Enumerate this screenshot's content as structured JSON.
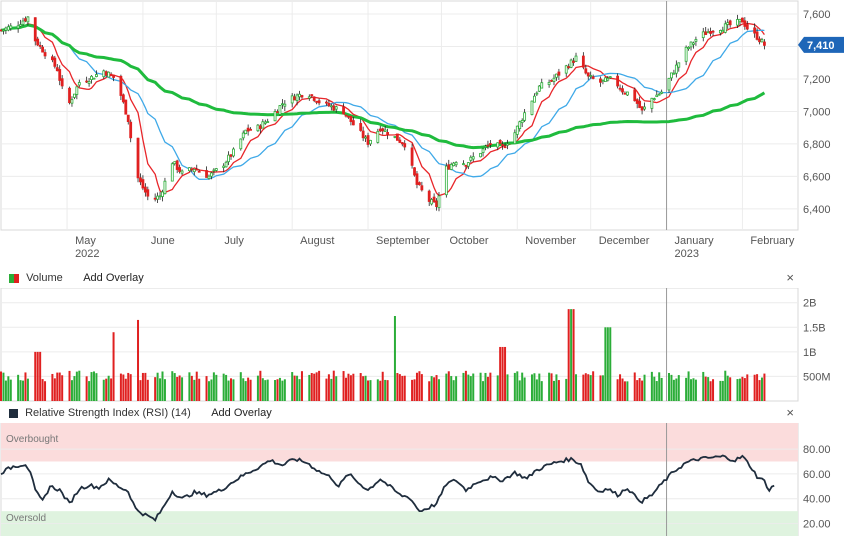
{
  "chart_data": [
    {
      "type": "candlestick",
      "title": "",
      "last_price": "7,410",
      "y_ticks": [
        "7,600",
        "7,400",
        "7,200",
        "7,000",
        "6,800",
        "6,600",
        "6,400"
      ],
      "ylim": [
        6270,
        7680
      ],
      "x_labels": [
        {
          "label": "May",
          "year": "2022"
        },
        {
          "label": "June",
          "year": ""
        },
        {
          "label": "July",
          "year": ""
        },
        {
          "label": "August",
          "year": ""
        },
        {
          "label": "September",
          "year": ""
        },
        {
          "label": "October",
          "year": ""
        },
        {
          "label": "November",
          "year": ""
        },
        {
          "label": "December",
          "year": ""
        },
        {
          "label": "January",
          "year": "2023"
        },
        {
          "label": "February",
          "year": ""
        }
      ],
      "x_label_days": [
        27,
        58,
        88,
        119,
        150,
        180,
        211,
        241,
        272,
        303
      ],
      "x_range_days": [
        0,
        320
      ],
      "close_anchors": [
        [
          0,
          7500
        ],
        [
          6,
          7530
        ],
        [
          11,
          7580
        ],
        [
          14,
          7440
        ],
        [
          18,
          7360
        ],
        [
          23,
          7260
        ],
        [
          27,
          7020
        ],
        [
          32,
          7180
        ],
        [
          37,
          7210
        ],
        [
          42,
          7250
        ],
        [
          47,
          7200
        ],
        [
          52,
          6950
        ],
        [
          55,
          6620
        ],
        [
          58,
          6530
        ],
        [
          61,
          6450
        ],
        [
          65,
          6480
        ],
        [
          70,
          6690
        ],
        [
          74,
          6620
        ],
        [
          79,
          6650
        ],
        [
          85,
          6600
        ],
        [
          90,
          6660
        ],
        [
          95,
          6750
        ],
        [
          100,
          6880
        ],
        [
          105,
          6900
        ],
        [
          110,
          6960
        ],
        [
          115,
          7050
        ],
        [
          120,
          7090
        ],
        [
          125,
          7120
        ],
        [
          130,
          7060
        ],
        [
          135,
          7030
        ],
        [
          140,
          7000
        ],
        [
          145,
          6900
        ],
        [
          150,
          6810
        ],
        [
          155,
          6900
        ],
        [
          160,
          6850
        ],
        [
          165,
          6800
        ],
        [
          170,
          6550
        ],
        [
          175,
          6450
        ],
        [
          178,
          6420
        ],
        [
          182,
          6650
        ],
        [
          186,
          6700
        ],
        [
          190,
          6680
        ],
        [
          195,
          6740
        ],
        [
          200,
          6800
        ],
        [
          205,
          6780
        ],
        [
          210,
          6870
        ],
        [
          215,
          7020
        ],
        [
          220,
          7150
        ],
        [
          225,
          7190
        ],
        [
          230,
          7260
        ],
        [
          235,
          7330
        ],
        [
          240,
          7210
        ],
        [
          245,
          7180
        ],
        [
          250,
          7200
        ],
        [
          254,
          7130
        ],
        [
          258,
          7100
        ],
        [
          262,
          7000
        ],
        [
          266,
          7080
        ],
        [
          270,
          7120
        ],
        [
          275,
          7250
        ],
        [
          280,
          7380
        ],
        [
          285,
          7460
        ],
        [
          290,
          7500
        ],
        [
          295,
          7520
        ],
        [
          300,
          7540
        ],
        [
          303,
          7560
        ],
        [
          306,
          7490
        ],
        [
          309,
          7460
        ],
        [
          312,
          7410
        ]
      ],
      "series": [
        {
          "name": "",
          "color": "#e8262a",
          "period": 8
        },
        {
          "name": "",
          "color": "#3fa9e8",
          "period": 20
        },
        {
          "name": "",
          "color": "#1fbb3d",
          "period": 100
        }
      ],
      "colors": {
        "up": "#2bad38",
        "down": "#e02020",
        "wick": "#222222"
      }
    },
    {
      "type": "bar",
      "y_ticks": [
        "2B",
        "1.5B",
        "1B",
        "500M"
      ],
      "ylim": [
        0,
        2300
      ],
      "baseline_million": 500,
      "spikes_day_million": [
        [
          15,
          1000
        ],
        [
          47,
          1400
        ],
        [
          55,
          1650
        ],
        [
          160,
          1730
        ],
        [
          205,
          1100
        ],
        [
          233,
          1870
        ],
        [
          248,
          1500
        ],
        [
          256,
          400
        ]
      ],
      "colors": {
        "up": "#2bad38",
        "down": "#e02020"
      }
    },
    {
      "type": "line",
      "y_ticks": [
        "80.00",
        "60.00",
        "40.00",
        "20.00"
      ],
      "ylim": [
        10,
        101
      ],
      "overbought": 70,
      "oversold": 30,
      "color": "#1f2d3d",
      "anchors": [
        [
          0,
          61
        ],
        [
          5,
          66
        ],
        [
          10,
          68
        ],
        [
          12,
          62
        ],
        [
          14,
          46
        ],
        [
          17,
          38
        ],
        [
          20,
          50
        ],
        [
          24,
          47
        ],
        [
          28,
          36
        ],
        [
          32,
          48
        ],
        [
          36,
          51
        ],
        [
          40,
          49
        ],
        [
          44,
          55
        ],
        [
          48,
          50
        ],
        [
          52,
          46
        ],
        [
          55,
          32
        ],
        [
          58,
          28
        ],
        [
          61,
          25
        ],
        [
          63,
          23
        ],
        [
          66,
          32
        ],
        [
          70,
          46
        ],
        [
          74,
          40
        ],
        [
          79,
          45
        ],
        [
          84,
          43
        ],
        [
          90,
          47
        ],
        [
          95,
          54
        ],
        [
          100,
          60
        ],
        [
          105,
          65
        ],
        [
          110,
          71
        ],
        [
          115,
          67
        ],
        [
          120,
          72
        ],
        [
          125,
          69
        ],
        [
          130,
          62
        ],
        [
          135,
          57
        ],
        [
          138,
          50
        ],
        [
          142,
          60
        ],
        [
          146,
          53
        ],
        [
          150,
          47
        ],
        [
          155,
          56
        ],
        [
          160,
          48
        ],
        [
          163,
          43
        ],
        [
          167,
          41
        ],
        [
          171,
          30
        ],
        [
          175,
          33
        ],
        [
          178,
          36
        ],
        [
          182,
          52
        ],
        [
          186,
          55
        ],
        [
          190,
          47
        ],
        [
          195,
          54
        ],
        [
          200,
          57
        ],
        [
          205,
          55
        ],
        [
          210,
          61
        ],
        [
          215,
          56
        ],
        [
          218,
          62
        ],
        [
          222,
          66
        ],
        [
          228,
          70
        ],
        [
          233,
          72
        ],
        [
          237,
          68
        ],
        [
          240,
          54
        ],
        [
          244,
          46
        ],
        [
          248,
          48
        ],
        [
          252,
          43
        ],
        [
          256,
          49
        ],
        [
          259,
          42
        ],
        [
          262,
          38
        ],
        [
          266,
          43
        ],
        [
          270,
          52
        ],
        [
          275,
          62
        ],
        [
          280,
          69
        ],
        [
          285,
          72
        ],
        [
          290,
          73
        ],
        [
          295,
          74
        ],
        [
          300,
          71
        ],
        [
          303,
          74
        ],
        [
          306,
          67
        ],
        [
          309,
          58
        ],
        [
          312,
          54
        ],
        [
          314,
          47
        ],
        [
          316,
          51
        ]
      ],
      "colors": {
        "overbought_band": "#fbdcdc",
        "oversold_band": "#dff3df"
      }
    }
  ],
  "volume_header": {
    "label": "Volume",
    "overlay": "Add Overlay",
    "close": "×"
  },
  "rsi_header": {
    "label": "Relative Strength Index (RSI) (14)",
    "overlay": "Add Overlay",
    "close": "×"
  },
  "rsi_zone_labels": {
    "overbought": "Overbought",
    "oversold": "Oversold"
  }
}
